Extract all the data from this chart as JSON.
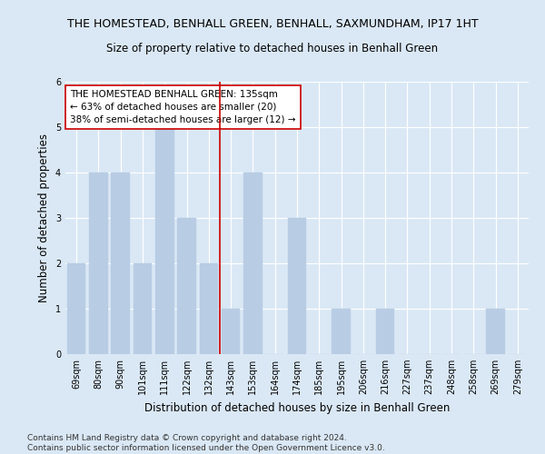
{
  "title": "THE HOMESTEAD, BENHALL GREEN, BENHALL, SAXMUNDHAM, IP17 1HT",
  "subtitle": "Size of property relative to detached houses in Benhall Green",
  "xlabel": "Distribution of detached houses by size in Benhall Green",
  "ylabel": "Number of detached properties",
  "categories": [
    "69sqm",
    "80sqm",
    "90sqm",
    "101sqm",
    "111sqm",
    "122sqm",
    "132sqm",
    "143sqm",
    "153sqm",
    "164sqm",
    "174sqm",
    "185sqm",
    "195sqm",
    "206sqm",
    "216sqm",
    "227sqm",
    "237sqm",
    "248sqm",
    "258sqm",
    "269sqm",
    "279sqm"
  ],
  "values": [
    2,
    4,
    4,
    2,
    5,
    3,
    2,
    1,
    4,
    0,
    3,
    0,
    1,
    0,
    1,
    0,
    0,
    0,
    0,
    1,
    0
  ],
  "bar_color": "#B8CCE4",
  "bar_edgecolor": "#B8CCE4",
  "vline_x": 6.5,
  "vline_color": "#CC0000",
  "annotation_text": "THE HOMESTEAD BENHALL GREEN: 135sqm\n← 63% of detached houses are smaller (20)\n38% of semi-detached houses are larger (12) →",
  "annotation_box_color": "#ffffff",
  "annotation_box_edgecolor": "#CC0000",
  "ylim": [
    0,
    6
  ],
  "yticks": [
    0,
    1,
    2,
    3,
    4,
    5,
    6
  ],
  "footnote": "Contains HM Land Registry data © Crown copyright and database right 2024.\nContains public sector information licensed under the Open Government Licence v3.0.",
  "background_color": "#DAE8F5",
  "title_fontsize": 9,
  "subtitle_fontsize": 8.5,
  "xlabel_fontsize": 8.5,
  "ylabel_fontsize": 8.5,
  "tick_fontsize": 7,
  "annotation_fontsize": 7.5,
  "footnote_fontsize": 6.5
}
